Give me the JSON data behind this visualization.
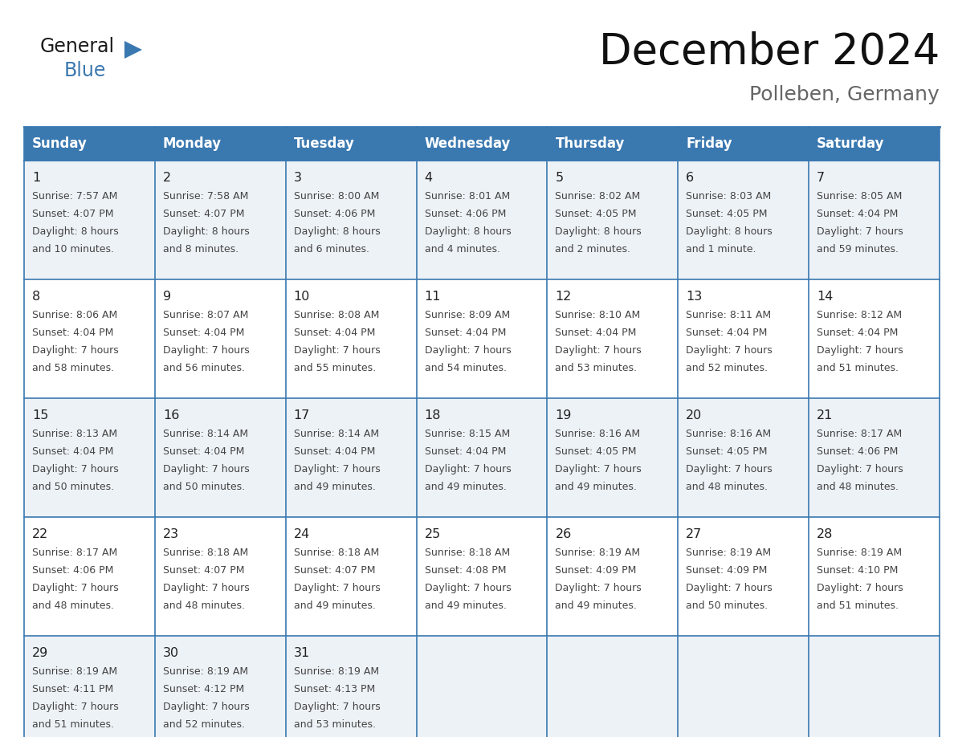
{
  "title": "December 2024",
  "subtitle": "Polleben, Germany",
  "days_of_week": [
    "Sunday",
    "Monday",
    "Tuesday",
    "Wednesday",
    "Thursday",
    "Friday",
    "Saturday"
  ],
  "header_bg": "#3a78b0",
  "header_text_color": "#ffffff",
  "row_bg_odd": "#edf2f7",
  "row_bg_even": "#ffffff",
  "day_num_color": "#222222",
  "cell_text_color": "#444444",
  "grid_color": "#3a78b0",
  "title_color": "#111111",
  "subtitle_color": "#666666",
  "calendar": [
    [
      {
        "day": 1,
        "sunrise": "7:57 AM",
        "sunset": "4:07 PM",
        "daylight_h": "8 hours",
        "daylight_m": "and 10 minutes."
      },
      {
        "day": 2,
        "sunrise": "7:58 AM",
        "sunset": "4:07 PM",
        "daylight_h": "8 hours",
        "daylight_m": "and 8 minutes."
      },
      {
        "day": 3,
        "sunrise": "8:00 AM",
        "sunset": "4:06 PM",
        "daylight_h": "8 hours",
        "daylight_m": "and 6 minutes."
      },
      {
        "day": 4,
        "sunrise": "8:01 AM",
        "sunset": "4:06 PM",
        "daylight_h": "8 hours",
        "daylight_m": "and 4 minutes."
      },
      {
        "day": 5,
        "sunrise": "8:02 AM",
        "sunset": "4:05 PM",
        "daylight_h": "8 hours",
        "daylight_m": "and 2 minutes."
      },
      {
        "day": 6,
        "sunrise": "8:03 AM",
        "sunset": "4:05 PM",
        "daylight_h": "8 hours",
        "daylight_m": "and 1 minute."
      },
      {
        "day": 7,
        "sunrise": "8:05 AM",
        "sunset": "4:04 PM",
        "daylight_h": "7 hours",
        "daylight_m": "and 59 minutes."
      }
    ],
    [
      {
        "day": 8,
        "sunrise": "8:06 AM",
        "sunset": "4:04 PM",
        "daylight_h": "7 hours",
        "daylight_m": "and 58 minutes."
      },
      {
        "day": 9,
        "sunrise": "8:07 AM",
        "sunset": "4:04 PM",
        "daylight_h": "7 hours",
        "daylight_m": "and 56 minutes."
      },
      {
        "day": 10,
        "sunrise": "8:08 AM",
        "sunset": "4:04 PM",
        "daylight_h": "7 hours",
        "daylight_m": "and 55 minutes."
      },
      {
        "day": 11,
        "sunrise": "8:09 AM",
        "sunset": "4:04 PM",
        "daylight_h": "7 hours",
        "daylight_m": "and 54 minutes."
      },
      {
        "day": 12,
        "sunrise": "8:10 AM",
        "sunset": "4:04 PM",
        "daylight_h": "7 hours",
        "daylight_m": "and 53 minutes."
      },
      {
        "day": 13,
        "sunrise": "8:11 AM",
        "sunset": "4:04 PM",
        "daylight_h": "7 hours",
        "daylight_m": "and 52 minutes."
      },
      {
        "day": 14,
        "sunrise": "8:12 AM",
        "sunset": "4:04 PM",
        "daylight_h": "7 hours",
        "daylight_m": "and 51 minutes."
      }
    ],
    [
      {
        "day": 15,
        "sunrise": "8:13 AM",
        "sunset": "4:04 PM",
        "daylight_h": "7 hours",
        "daylight_m": "and 50 minutes."
      },
      {
        "day": 16,
        "sunrise": "8:14 AM",
        "sunset": "4:04 PM",
        "daylight_h": "7 hours",
        "daylight_m": "and 50 minutes."
      },
      {
        "day": 17,
        "sunrise": "8:14 AM",
        "sunset": "4:04 PM",
        "daylight_h": "7 hours",
        "daylight_m": "and 49 minutes."
      },
      {
        "day": 18,
        "sunrise": "8:15 AM",
        "sunset": "4:04 PM",
        "daylight_h": "7 hours",
        "daylight_m": "and 49 minutes."
      },
      {
        "day": 19,
        "sunrise": "8:16 AM",
        "sunset": "4:05 PM",
        "daylight_h": "7 hours",
        "daylight_m": "and 49 minutes."
      },
      {
        "day": 20,
        "sunrise": "8:16 AM",
        "sunset": "4:05 PM",
        "daylight_h": "7 hours",
        "daylight_m": "and 48 minutes."
      },
      {
        "day": 21,
        "sunrise": "8:17 AM",
        "sunset": "4:06 PM",
        "daylight_h": "7 hours",
        "daylight_m": "and 48 minutes."
      }
    ],
    [
      {
        "day": 22,
        "sunrise": "8:17 AM",
        "sunset": "4:06 PM",
        "daylight_h": "7 hours",
        "daylight_m": "and 48 minutes."
      },
      {
        "day": 23,
        "sunrise": "8:18 AM",
        "sunset": "4:07 PM",
        "daylight_h": "7 hours",
        "daylight_m": "and 48 minutes."
      },
      {
        "day": 24,
        "sunrise": "8:18 AM",
        "sunset": "4:07 PM",
        "daylight_h": "7 hours",
        "daylight_m": "and 49 minutes."
      },
      {
        "day": 25,
        "sunrise": "8:18 AM",
        "sunset": "4:08 PM",
        "daylight_h": "7 hours",
        "daylight_m": "and 49 minutes."
      },
      {
        "day": 26,
        "sunrise": "8:19 AM",
        "sunset": "4:09 PM",
        "daylight_h": "7 hours",
        "daylight_m": "and 49 minutes."
      },
      {
        "day": 27,
        "sunrise": "8:19 AM",
        "sunset": "4:09 PM",
        "daylight_h": "7 hours",
        "daylight_m": "and 50 minutes."
      },
      {
        "day": 28,
        "sunrise": "8:19 AM",
        "sunset": "4:10 PM",
        "daylight_h": "7 hours",
        "daylight_m": "and 51 minutes."
      }
    ],
    [
      {
        "day": 29,
        "sunrise": "8:19 AM",
        "sunset": "4:11 PM",
        "daylight_h": "7 hours",
        "daylight_m": "and 51 minutes."
      },
      {
        "day": 30,
        "sunrise": "8:19 AM",
        "sunset": "4:12 PM",
        "daylight_h": "7 hours",
        "daylight_m": "and 52 minutes."
      },
      {
        "day": 31,
        "sunrise": "8:19 AM",
        "sunset": "4:13 PM",
        "daylight_h": "7 hours",
        "daylight_m": "and 53 minutes."
      },
      null,
      null,
      null,
      null
    ]
  ]
}
